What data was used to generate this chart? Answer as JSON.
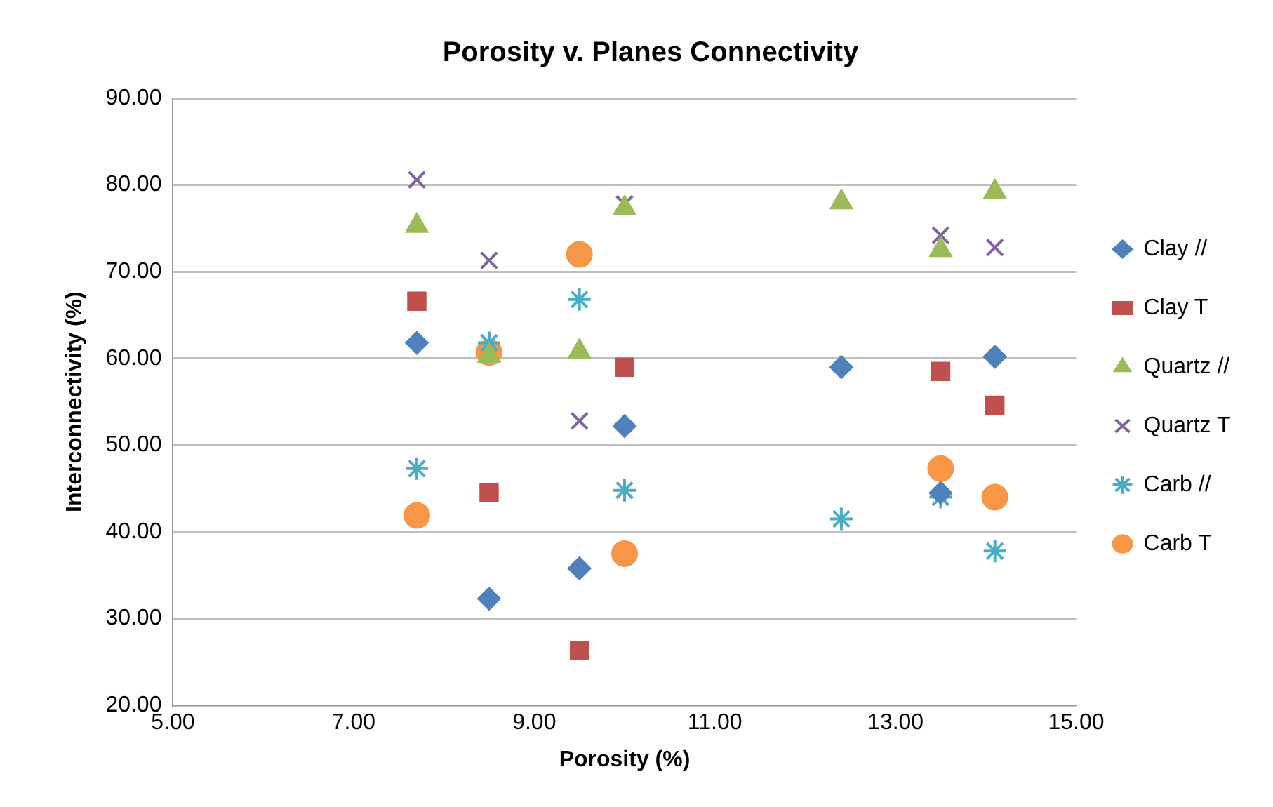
{
  "chart_data": {
    "type": "scatter",
    "title": "Porosity v. Planes Connectivity",
    "xlabel": "Porosity (%)",
    "ylabel": "Interconnectivity (%)",
    "xlim": [
      5,
      15
    ],
    "xticks": [
      {
        "value": 5,
        "label": "5.00"
      },
      {
        "value": 7,
        "label": "7.00"
      },
      {
        "value": 9,
        "label": "9.00"
      },
      {
        "value": 11,
        "label": "11.00"
      },
      {
        "value": 13,
        "label": "13.00"
      },
      {
        "value": 15,
        "label": "15.00"
      }
    ],
    "ylim": [
      20,
      90
    ],
    "yticks": [
      {
        "value": 20,
        "label": "20.00"
      },
      {
        "value": 30,
        "label": "30.00"
      },
      {
        "value": 40,
        "label": "40.00"
      },
      {
        "value": 50,
        "label": "50.00"
      },
      {
        "value": 60,
        "label": "60.00"
      },
      {
        "value": 70,
        "label": "70.00"
      },
      {
        "value": 80,
        "label": "80.00"
      },
      {
        "value": 90,
        "label": "90.00"
      }
    ],
    "grid": "y",
    "legend": "right",
    "series": [
      {
        "name": "Clay //",
        "color": "#4f81bd",
        "marker": "diamond",
        "x": [
          7.7,
          8.5,
          9.5,
          10.0,
          12.4,
          13.5,
          14.1
        ],
        "values": [
          61.8,
          32.3,
          35.8,
          52.2,
          59.0,
          44.5,
          60.2
        ]
      },
      {
        "name": "Clay T",
        "color": "#c0504d",
        "marker": "square",
        "x": [
          7.7,
          8.5,
          9.5,
          10.0,
          13.5,
          14.1
        ],
        "values": [
          66.6,
          44.5,
          26.3,
          59.0,
          58.5,
          54.6
        ]
      },
      {
        "name": "Quartz //",
        "color": "#9bbb59",
        "marker": "triangle",
        "x": [
          7.7,
          8.5,
          9.5,
          10.0,
          12.4,
          13.5,
          14.1
        ],
        "values": [
          75.3,
          60.3,
          60.8,
          77.3,
          78.0,
          72.5,
          79.2
        ]
      },
      {
        "name": "Quartz T",
        "color": "#8064a2",
        "marker": "cross",
        "x": [
          7.7,
          8.5,
          9.5,
          10.0,
          13.5,
          14.1
        ],
        "values": [
          80.6,
          71.3,
          52.8,
          77.8,
          74.2,
          72.8
        ]
      },
      {
        "name": "Carb //",
        "color": "#4bacc6",
        "x": [
          7.7,
          8.5,
          9.5,
          10.0,
          12.4,
          13.5,
          14.1
        ],
        "values": [
          47.3,
          61.8,
          66.8,
          44.8,
          41.5,
          44.0,
          37.8
        ]
      },
      {
        "name": "Carb T",
        "color": "#f79646",
        "marker": "circle",
        "x": [
          7.7,
          8.5,
          9.5,
          10.0,
          13.5,
          14.1
        ],
        "values": [
          41.9,
          60.7,
          72.0,
          37.5,
          47.3,
          44.0
        ]
      }
    ]
  }
}
